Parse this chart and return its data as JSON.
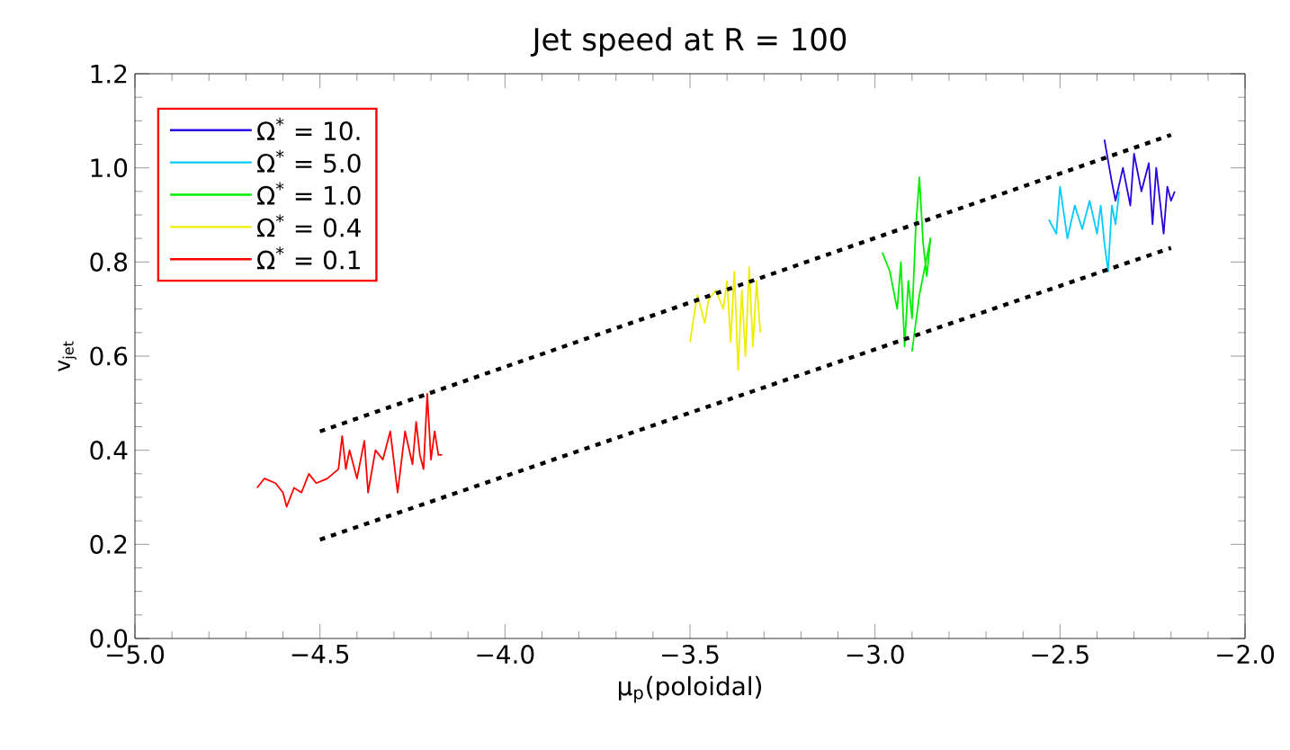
{
  "chart_data": {
    "type": "line",
    "title": "Jet speed at R = 100",
    "xlabel": "μ$_{p}$(poloidal)",
    "ylabel": "v$_{jet}$",
    "xlim": [
      -5,
      -2
    ],
    "ylim": [
      0,
      1.2
    ],
    "xticks": [
      {
        "value": -5,
        "label": "−5.0"
      },
      {
        "value": -4.5,
        "label": "−4.5"
      },
      {
        "value": -4,
        "label": "−4.0"
      },
      {
        "value": -3.5,
        "label": "−3.5"
      },
      {
        "value": -3,
        "label": "−3.0"
      },
      {
        "value": -2.5,
        "label": "−2.5"
      },
      {
        "value": -2,
        "label": "−2.0"
      }
    ],
    "yticks": [
      {
        "value": 0,
        "label": "0.0"
      },
      {
        "value": 0.2,
        "label": "0.2"
      },
      {
        "value": 0.4,
        "label": "0.4"
      },
      {
        "value": 0.6,
        "label": "0.6"
      },
      {
        "value": 0.8,
        "label": "0.8"
      },
      {
        "value": 1,
        "label": "1.0"
      },
      {
        "value": 1.2,
        "label": "1.2"
      }
    ],
    "legend": "top left",
    "series": [
      {
        "name": "Ω$^{*}$ = 10.",
        "color": "#2a00e0",
        "x": [
          -2.38,
          -2.36,
          -2.35,
          -2.33,
          -2.31,
          -2.3,
          -2.28,
          -2.26,
          -2.25,
          -2.24,
          -2.22,
          -2.21,
          -2.2,
          -2.19
        ],
        "values": [
          1.06,
          0.97,
          0.93,
          1.0,
          0.92,
          1.03,
          0.95,
          1.01,
          0.88,
          1.0,
          0.86,
          0.96,
          0.93,
          0.95
        ]
      },
      {
        "name": "Ω$^{*}$ = 5.0",
        "color": "#00ccff",
        "x": [
          -2.53,
          -2.51,
          -2.5,
          -2.48,
          -2.46,
          -2.44,
          -2.42,
          -2.4,
          -2.39,
          -2.38,
          -2.37,
          -2.36,
          -2.35,
          -2.34
        ],
        "values": [
          0.89,
          0.86,
          0.96,
          0.85,
          0.92,
          0.87,
          0.93,
          0.86,
          0.92,
          0.84,
          0.78,
          0.92,
          0.88,
          0.95
        ]
      },
      {
        "name": "Ω$^{*}$ = 1.0",
        "color": "#00ee00",
        "x": [
          -2.98,
          -2.96,
          -2.94,
          -2.93,
          -2.92,
          -2.91,
          -2.9,
          -2.89,
          -2.88,
          -2.87,
          -2.86,
          -2.85,
          -2.88,
          -2.9
        ],
        "values": [
          0.82,
          0.78,
          0.7,
          0.8,
          0.62,
          0.76,
          0.68,
          0.87,
          0.98,
          0.84,
          0.77,
          0.85,
          0.73,
          0.61
        ]
      },
      {
        "name": "Ω$^{*}$ = 0.4",
        "color": "#eeee00",
        "x": [
          -3.5,
          -3.48,
          -3.46,
          -3.45,
          -3.43,
          -3.41,
          -3.4,
          -3.39,
          -3.38,
          -3.37,
          -3.36,
          -3.35,
          -3.34,
          -3.33,
          -3.32,
          -3.31
        ],
        "values": [
          0.63,
          0.73,
          0.67,
          0.72,
          0.74,
          0.7,
          0.76,
          0.63,
          0.78,
          0.57,
          0.74,
          0.6,
          0.79,
          0.62,
          0.76,
          0.65
        ]
      },
      {
        "name": "Ω$^{*}$ = 0.1",
        "color": "#ff0000",
        "x": [
          -4.67,
          -4.65,
          -4.62,
          -4.6,
          -4.59,
          -4.57,
          -4.55,
          -4.53,
          -4.51,
          -4.48,
          -4.45,
          -4.44,
          -4.43,
          -4.42,
          -4.4,
          -4.38,
          -4.37,
          -4.35,
          -4.33,
          -4.31,
          -4.29,
          -4.27,
          -4.25,
          -4.24,
          -4.23,
          -4.22,
          -4.21,
          -4.2,
          -4.19,
          -4.18,
          -4.17
        ],
        "values": [
          0.32,
          0.34,
          0.33,
          0.31,
          0.28,
          0.32,
          0.31,
          0.35,
          0.33,
          0.34,
          0.36,
          0.43,
          0.36,
          0.4,
          0.34,
          0.42,
          0.31,
          0.4,
          0.38,
          0.44,
          0.31,
          0.44,
          0.37,
          0.46,
          0.39,
          0.36,
          0.52,
          0.38,
          0.44,
          0.39,
          0.39
        ]
      },
      {
        "type": "line",
        "color": "#000000",
        "line_style": "dotted",
        "x": [
          -4.5,
          -2.2
        ],
        "values": [
          0.44,
          1.07
        ]
      },
      {
        "type": "line",
        "color": "#000000",
        "line_style": "dotted",
        "x": [
          -4.5,
          -2.2
        ],
        "values": [
          0.21,
          0.83
        ]
      }
    ]
  }
}
